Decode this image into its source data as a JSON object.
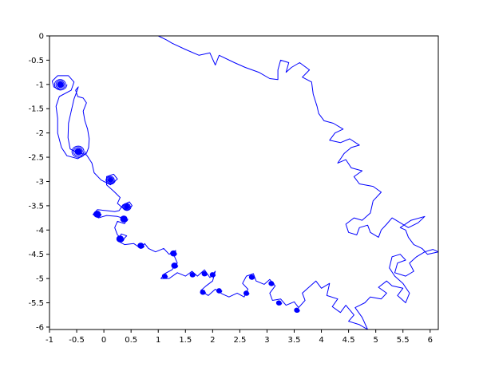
{
  "chart_data": {
    "type": "line",
    "title": "",
    "xlabel": "",
    "ylabel": "",
    "xlim": [
      -1,
      6.15
    ],
    "ylim": [
      -6.05,
      0
    ],
    "grid": false,
    "x_ticks": [
      "-1",
      "-0.5",
      "0",
      "0.5",
      "1",
      "1.5",
      "2",
      "2.5",
      "3",
      "3.5",
      "4",
      "4.5",
      "5",
      "5.5",
      "6"
    ],
    "y_ticks": [
      "0",
      "-0.5",
      "-1",
      "-1.5",
      "-2",
      "-2.5",
      "-3",
      "-3.5",
      "-4",
      "-4.5",
      "-5",
      "-5.5",
      "-6"
    ],
    "series": [
      {
        "color": "#0000ff",
        "spirals": [
          {
            "x": -0.8,
            "y": -1.0,
            "r": 0.12
          },
          {
            "x": -0.47,
            "y": -2.38,
            "r": 0.13
          },
          {
            "x": 0.12,
            "y": -2.97,
            "r": 0.09
          },
          {
            "x": 0.42,
            "y": -3.52,
            "r": 0.08
          },
          {
            "x": 0.37,
            "y": -3.77,
            "r": 0.07
          },
          {
            "x": -0.12,
            "y": -3.67,
            "r": 0.07
          },
          {
            "x": 0.3,
            "y": -4.18,
            "r": 0.07
          },
          {
            "x": 0.68,
            "y": -4.32,
            "r": 0.06
          },
          {
            "x": 1.28,
            "y": -4.48,
            "r": 0.06
          },
          {
            "x": 1.3,
            "y": -4.73,
            "r": 0.06
          },
          {
            "x": 1.12,
            "y": -4.95,
            "r": 0.05
          },
          {
            "x": 1.63,
            "y": -4.92,
            "r": 0.05
          },
          {
            "x": 1.85,
            "y": -4.9,
            "r": 0.05
          },
          {
            "x": 2.0,
            "y": -4.92,
            "r": 0.05
          },
          {
            "x": 1.82,
            "y": -5.28,
            "r": 0.05
          },
          {
            "x": 2.12,
            "y": -5.25,
            "r": 0.05
          },
          {
            "x": 2.62,
            "y": -5.3,
            "r": 0.05
          },
          {
            "x": 2.72,
            "y": -4.97,
            "r": 0.05
          },
          {
            "x": 3.08,
            "y": -5.1,
            "r": 0.05
          },
          {
            "x": 3.22,
            "y": -5.5,
            "r": 0.05
          },
          {
            "x": 3.55,
            "y": -5.65,
            "r": 0.05
          }
        ],
        "path": [
          [
            -0.8,
            -1.12
          ],
          [
            -0.92,
            -1.05
          ],
          [
            -0.95,
            -0.93
          ],
          [
            -0.85,
            -0.82
          ],
          [
            -0.65,
            -0.82
          ],
          [
            -0.55,
            -0.95
          ],
          [
            -0.6,
            -1.12
          ],
          [
            -0.82,
            -1.25
          ],
          [
            -0.88,
            -1.45
          ],
          [
            -0.85,
            -1.7
          ],
          [
            -0.85,
            -2.0
          ],
          [
            -0.78,
            -2.3
          ],
          [
            -0.68,
            -2.47
          ],
          [
            -0.48,
            -2.53
          ],
          [
            -0.32,
            -2.42
          ],
          [
            -0.28,
            -2.3
          ],
          [
            -0.27,
            -2.12
          ],
          [
            -0.3,
            -1.92
          ],
          [
            -0.35,
            -1.75
          ],
          [
            -0.38,
            -1.55
          ],
          [
            -0.32,
            -1.38
          ],
          [
            -0.38,
            -1.28
          ],
          [
            -0.48,
            -1.25
          ],
          [
            -0.52,
            -1.12
          ],
          [
            -0.47,
            -1.05
          ],
          [
            -0.5,
            -1.15
          ],
          [
            -0.55,
            -1.3
          ],
          [
            -0.6,
            -1.55
          ],
          [
            -0.65,
            -1.8
          ],
          [
            -0.66,
            -2.1
          ],
          [
            -0.62,
            -2.33
          ],
          [
            -0.5,
            -2.4
          ],
          [
            -0.32,
            -2.45
          ],
          [
            -0.22,
            -2.62
          ],
          [
            -0.18,
            -2.82
          ],
          [
            -0.05,
            -2.97
          ],
          [
            0.12,
            -3.07
          ],
          [
            0.25,
            -2.95
          ],
          [
            0.18,
            -2.85
          ],
          [
            0.05,
            -2.9
          ],
          [
            0.05,
            -3.07
          ],
          [
            0.18,
            -3.2
          ],
          [
            0.3,
            -3.33
          ],
          [
            0.25,
            -3.45
          ],
          [
            0.38,
            -3.58
          ],
          [
            0.52,
            -3.5
          ],
          [
            0.47,
            -3.42
          ],
          [
            0.35,
            -3.48
          ],
          [
            0.28,
            -3.6
          ],
          [
            0.2,
            -3.62
          ],
          [
            0.05,
            -3.6
          ],
          [
            -0.12,
            -3.58
          ],
          [
            -0.2,
            -3.68
          ],
          [
            -0.1,
            -3.75
          ],
          [
            0.05,
            -3.7
          ],
          [
            0.25,
            -3.72
          ],
          [
            0.42,
            -3.78
          ],
          [
            0.38,
            -3.87
          ],
          [
            0.25,
            -3.82
          ],
          [
            0.2,
            -3.95
          ],
          [
            0.25,
            -4.1
          ],
          [
            0.35,
            -4.2
          ],
          [
            0.42,
            -4.12
          ],
          [
            0.32,
            -4.08
          ],
          [
            0.25,
            -4.22
          ],
          [
            0.38,
            -4.3
          ],
          [
            0.55,
            -4.28
          ],
          [
            0.68,
            -4.38
          ],
          [
            0.75,
            -4.28
          ],
          [
            0.82,
            -4.38
          ],
          [
            0.95,
            -4.45
          ],
          [
            1.1,
            -4.38
          ],
          [
            1.2,
            -4.5
          ],
          [
            1.32,
            -4.42
          ],
          [
            1.3,
            -4.55
          ],
          [
            1.35,
            -4.68
          ],
          [
            1.25,
            -4.82
          ],
          [
            1.12,
            -4.9
          ],
          [
            1.05,
            -5.0
          ],
          [
            1.2,
            -5.0
          ],
          [
            1.35,
            -4.88
          ],
          [
            1.5,
            -4.95
          ],
          [
            1.62,
            -4.85
          ],
          [
            1.72,
            -4.95
          ],
          [
            1.85,
            -4.82
          ],
          [
            1.95,
            -4.98
          ],
          [
            2.05,
            -4.85
          ],
          [
            2.0,
            -5.05
          ],
          [
            1.88,
            -5.15
          ],
          [
            1.78,
            -5.25
          ],
          [
            1.92,
            -5.35
          ],
          [
            2.05,
            -5.22
          ],
          [
            2.18,
            -5.32
          ],
          [
            2.3,
            -5.38
          ],
          [
            2.45,
            -5.3
          ],
          [
            2.58,
            -5.38
          ],
          [
            2.65,
            -5.22
          ],
          [
            2.55,
            -5.1
          ],
          [
            2.62,
            -4.95
          ],
          [
            2.75,
            -4.9
          ],
          [
            2.8,
            -5.05
          ],
          [
            2.95,
            -5.12
          ],
          [
            3.05,
            -5.02
          ],
          [
            3.15,
            -5.15
          ],
          [
            3.05,
            -5.3
          ],
          [
            3.1,
            -5.45
          ],
          [
            3.25,
            -5.42
          ],
          [
            3.35,
            -5.55
          ],
          [
            3.5,
            -5.48
          ],
          [
            3.58,
            -5.6
          ],
          [
            3.7,
            -5.45
          ],
          [
            3.65,
            -5.3
          ],
          [
            3.8,
            -5.15
          ],
          [
            3.9,
            -5.05
          ],
          [
            4.0,
            -5.2
          ],
          [
            4.15,
            -5.1
          ],
          [
            4.1,
            -5.35
          ],
          [
            4.3,
            -5.42
          ],
          [
            4.2,
            -5.58
          ],
          [
            4.35,
            -5.7
          ],
          [
            4.45,
            -5.55
          ],
          [
            4.6,
            -5.75
          ],
          [
            4.5,
            -5.88
          ],
          [
            4.7,
            -5.95
          ],
          [
            4.85,
            -6.05
          ],
          [
            4.75,
            -5.8
          ],
          [
            4.62,
            -5.6
          ],
          [
            4.8,
            -5.5
          ],
          [
            4.9,
            -5.38
          ],
          [
            5.1,
            -5.42
          ],
          [
            5.2,
            -5.3
          ],
          [
            5.05,
            -5.18
          ],
          [
            5.2,
            -5.05
          ],
          [
            5.3,
            -5.15
          ],
          [
            5.5,
            -5.2
          ],
          [
            5.4,
            -5.35
          ],
          [
            5.55,
            -5.5
          ],
          [
            5.62,
            -5.3
          ],
          [
            5.5,
            -5.1
          ],
          [
            5.35,
            -4.95
          ],
          [
            5.25,
            -4.78
          ],
          [
            5.3,
            -4.55
          ],
          [
            5.45,
            -4.5
          ],
          [
            5.55,
            -4.62
          ],
          [
            5.4,
            -4.68
          ],
          [
            5.35,
            -4.88
          ],
          [
            5.55,
            -4.95
          ],
          [
            5.7,
            -4.85
          ],
          [
            5.62,
            -4.68
          ],
          [
            5.75,
            -4.55
          ],
          [
            5.9,
            -4.45
          ],
          [
            6.05,
            -4.4
          ],
          [
            6.15,
            -4.45
          ],
          [
            5.95,
            -4.5
          ],
          [
            5.85,
            -4.38
          ],
          [
            5.7,
            -4.3
          ],
          [
            5.6,
            -4.15
          ],
          [
            5.55,
            -4.0
          ],
          [
            5.45,
            -3.95
          ],
          [
            5.65,
            -3.8
          ],
          [
            5.9,
            -3.72
          ],
          [
            5.78,
            -3.85
          ],
          [
            5.6,
            -3.95
          ],
          [
            5.45,
            -3.85
          ],
          [
            5.3,
            -3.75
          ],
          [
            5.2,
            -3.88
          ],
          [
            5.1,
            -4.0
          ],
          [
            5.05,
            -4.15
          ],
          [
            4.9,
            -4.05
          ],
          [
            4.85,
            -3.9
          ],
          [
            4.7,
            -3.95
          ],
          [
            4.65,
            -4.1
          ],
          [
            4.5,
            -4.05
          ],
          [
            4.45,
            -3.88
          ],
          [
            4.6,
            -3.75
          ],
          [
            4.75,
            -3.8
          ],
          [
            4.9,
            -3.65
          ],
          [
            4.95,
            -3.4
          ],
          [
            5.1,
            -3.22
          ],
          [
            4.95,
            -3.1
          ],
          [
            4.7,
            -3.05
          ],
          [
            4.6,
            -2.9
          ],
          [
            4.75,
            -2.78
          ],
          [
            4.55,
            -2.72
          ],
          [
            4.45,
            -2.55
          ],
          [
            4.3,
            -2.62
          ],
          [
            4.42,
            -2.42
          ],
          [
            4.55,
            -2.3
          ],
          [
            4.7,
            -2.25
          ],
          [
            4.52,
            -2.12
          ],
          [
            4.35,
            -2.2
          ],
          [
            4.15,
            -2.15
          ],
          [
            4.25,
            -2.0
          ],
          [
            4.4,
            -1.92
          ],
          [
            4.22,
            -1.8
          ],
          [
            4.05,
            -1.75
          ],
          [
            3.95,
            -1.6
          ],
          [
            3.92,
            -1.45
          ],
          [
            3.85,
            -1.2
          ],
          [
            3.82,
            -0.95
          ],
          [
            3.65,
            -0.85
          ],
          [
            3.78,
            -0.7
          ],
          [
            3.6,
            -0.55
          ],
          [
            3.45,
            -0.65
          ],
          [
            3.35,
            -0.75
          ],
          [
            3.4,
            -0.55
          ],
          [
            3.25,
            -0.5
          ],
          [
            3.2,
            -0.7
          ],
          [
            3.2,
            -0.9
          ],
          [
            3.05,
            -0.88
          ],
          [
            2.85,
            -0.75
          ],
          [
            2.6,
            -0.65
          ],
          [
            2.4,
            -0.55
          ],
          [
            2.12,
            -0.4
          ],
          [
            2.05,
            -0.6
          ],
          [
            1.95,
            -0.35
          ],
          [
            1.75,
            -0.4
          ],
          [
            1.5,
            -0.28
          ],
          [
            1.25,
            -0.15
          ],
          [
            1.15,
            -0.08
          ],
          [
            1.0,
            0.0
          ]
        ]
      }
    ]
  }
}
